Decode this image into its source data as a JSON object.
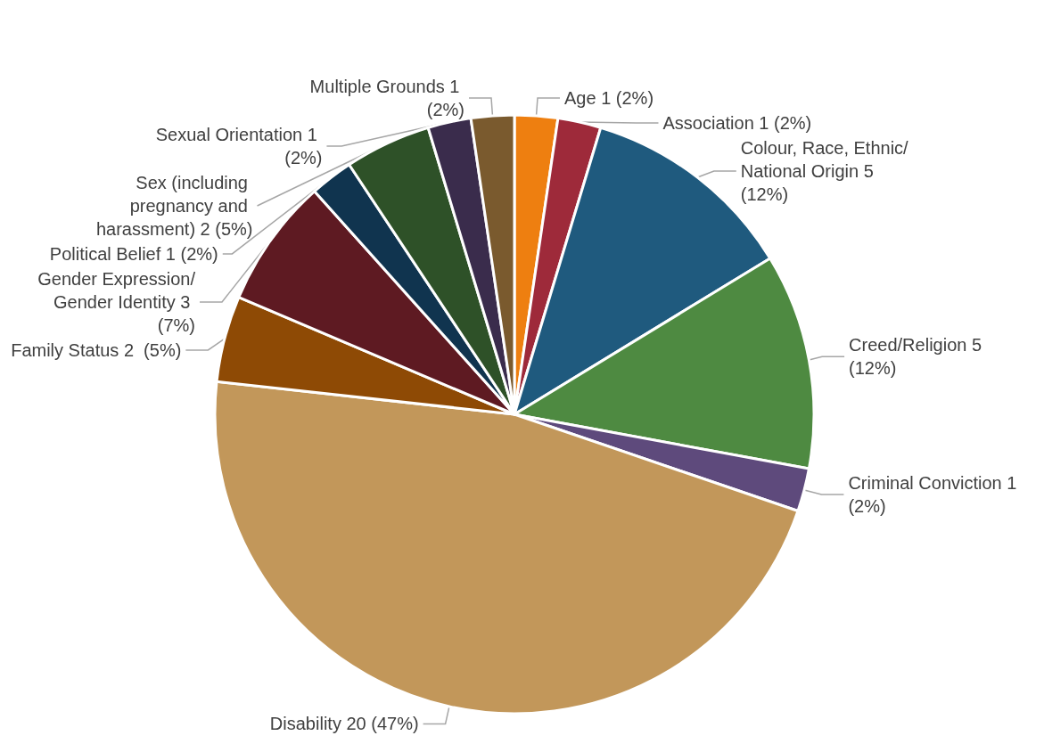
{
  "chart_data": {
    "type": "pie",
    "categories": [
      "Age",
      "Association",
      "Colour, Race, Ethnic/National Origin",
      "Creed/Religion",
      "Criminal Conviction",
      "Disability",
      "Family Status",
      "Gender Expression/Gender Identity",
      "Political Belief",
      "Sex (including pregnancy and harassment)",
      "Sexual Orientation",
      "Multiple Grounds"
    ],
    "values": [
      1,
      1,
      5,
      5,
      1,
      20,
      2,
      3,
      1,
      2,
      1,
      1
    ],
    "value_labels": [
      "1 (2%)",
      "1 (2%)",
      "5 (12%)",
      "5 (12%)",
      "1 (2%)",
      "20 (47%)",
      "2  (5%)",
      "3 (7%)",
      "1 (2%)",
      "2 (5%)",
      "1 (2%)",
      "1 (2%)"
    ],
    "colors": [
      "#ee7f10",
      "#9e2a3a",
      "#1f5a7e",
      "#4e8a41",
      "#5e4a7c",
      "#c2975a",
      "#8e4a05",
      "#5e1a22",
      "#10344f",
      "#2e5128",
      "#3a2c4c",
      "#7a5a2e"
    ],
    "legend": false
  }
}
